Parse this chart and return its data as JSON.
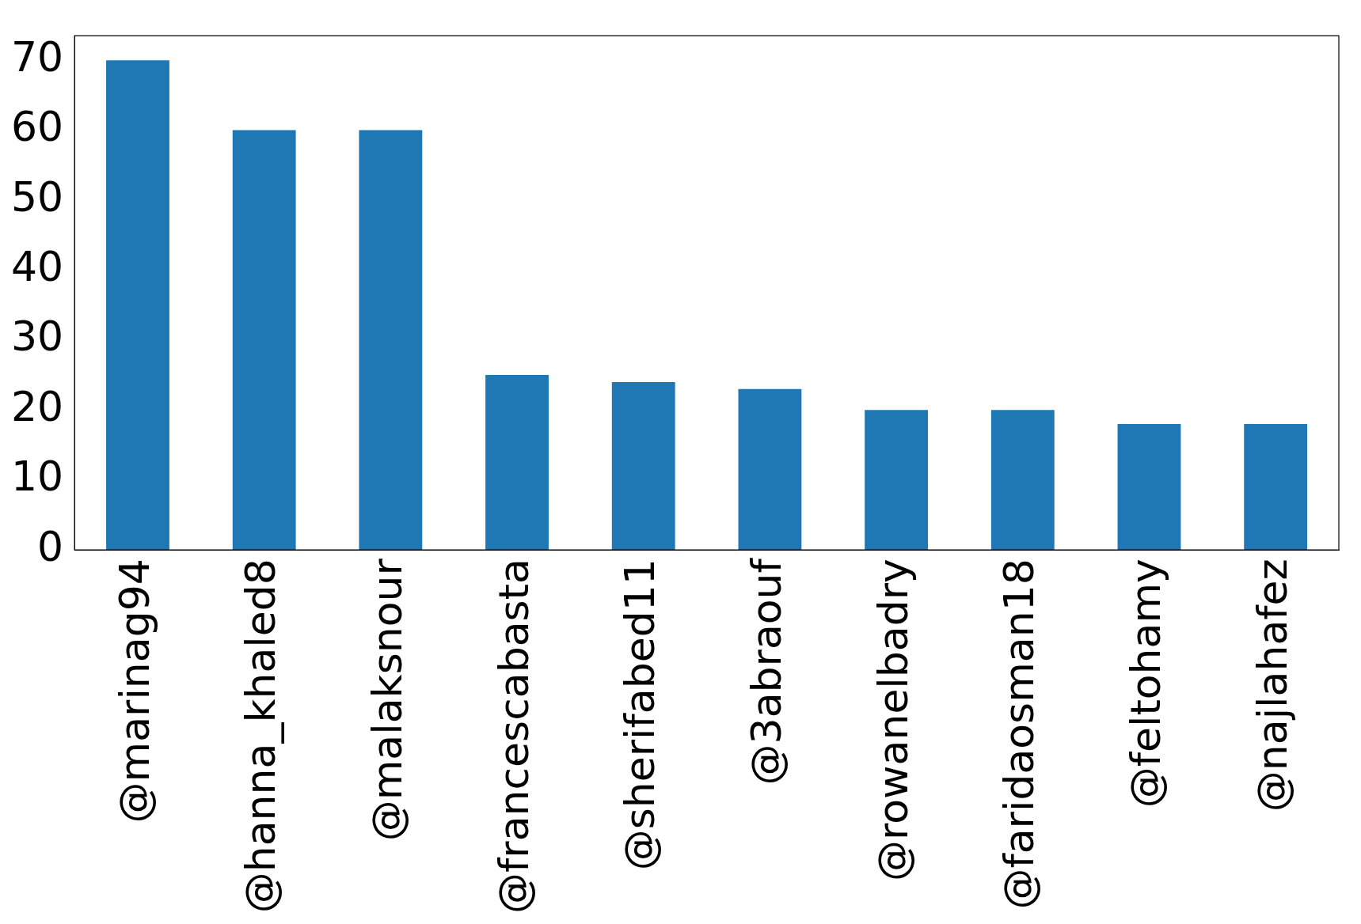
{
  "chart_data": {
    "type": "bar",
    "categories": [
      "@marinag94",
      "@hanna_khaled8",
      "@malaksnour",
      "@francescabasta",
      "@sherifabed11",
      "@3abraouf",
      "@rowanelbadry",
      "@faridaosman18",
      "@feltohamy",
      "@najlahafez"
    ],
    "values": [
      70,
      60,
      60,
      25,
      24,
      23,
      20,
      20,
      18,
      18
    ],
    "color": "#1f77b4",
    "ylim": [
      0,
      73.5
    ],
    "yticks": [
      0,
      10,
      20,
      30,
      40,
      50,
      60,
      70
    ],
    "grid": false,
    "legend": false
  }
}
